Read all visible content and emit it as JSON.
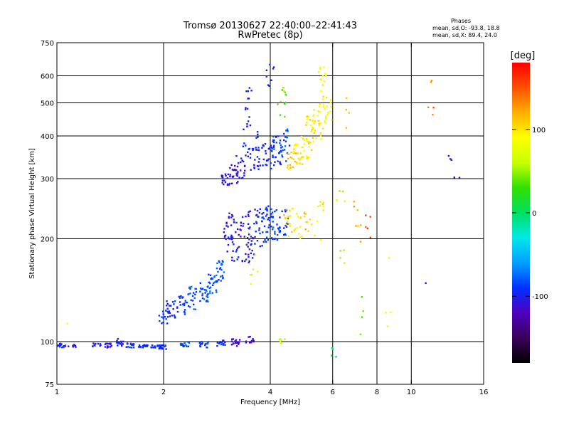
{
  "chart_data": {
    "type": "scatter",
    "title": "Tromsø 20130627 22:40:00–22:41:43",
    "subtitle": "RwPretec (8p)",
    "xlabel": "Frequency [MHz]",
    "ylabel": "Stationary phase Virtual Height [km]",
    "x_scale": "log",
    "y_scale": "log",
    "xlim": [
      1,
      16
    ],
    "ylim": [
      75,
      750
    ],
    "x_ticks": [
      1,
      2,
      4,
      6,
      8,
      10,
      16
    ],
    "x_tick_labels": [
      "1",
      "2",
      "4",
      "6",
      "8",
      "10",
      "16"
    ],
    "y_ticks": [
      75,
      100,
      200,
      300,
      400,
      500,
      600,
      750
    ],
    "y_tick_labels": [
      "75",
      "100",
      "200",
      "300",
      "400",
      "500",
      "600",
      "750"
    ],
    "grid_x": [
      2,
      4,
      6,
      8,
      10
    ],
    "grid_y": [
      100,
      200,
      300,
      400,
      500,
      600
    ],
    "grid": true,
    "stats_title": "Phases",
    "stats": [
      "mean, sd,O: -93.8, 18.8",
      "mean, sd,X:  89.4, 24.0"
    ],
    "colorbar": {
      "label": "[deg]",
      "min": -180,
      "max": 180,
      "ticks": [
        100,
        0,
        -100
      ],
      "tick_labels": [
        "100",
        "0",
        "-100"
      ],
      "stops": [
        "#000000",
        "#3a0058",
        "#5000c0",
        "#0030ff",
        "#00a0ff",
        "#00e8e8",
        "#00e060",
        "#30e000",
        "#c8ff00",
        "#ffff00",
        "#ffb000",
        "#ff5000",
        "#ff0000"
      ]
    },
    "series": [
      {
        "x": 1.0,
        "y0": 97,
        "y1": 99,
        "n": 18,
        "hue": -95
      },
      {
        "x": 1.05,
        "y0": 96,
        "y1": 98,
        "n": 8,
        "hue": -95
      },
      {
        "x": 1.1,
        "y0": 96,
        "y1": 98,
        "n": 6,
        "hue": -100
      },
      {
        "x": 1.3,
        "y0": 96,
        "y1": 99,
        "n": 10,
        "hue": -100
      },
      {
        "x": 1.4,
        "y0": 96,
        "y1": 100,
        "n": 14,
        "hue": -110
      },
      {
        "x": 1.5,
        "y0": 97,
        "y1": 102,
        "n": 16,
        "hue": -100
      },
      {
        "x": 1.6,
        "y0": 96,
        "y1": 99,
        "n": 14,
        "hue": -95
      },
      {
        "x": 1.75,
        "y0": 96,
        "y1": 98,
        "n": 16,
        "hue": -95
      },
      {
        "x": 1.9,
        "y0": 96,
        "y1": 98,
        "n": 16,
        "hue": -95
      },
      {
        "x": 2.0,
        "y0": 95,
        "y1": 98,
        "n": 14,
        "hue": -90
      },
      {
        "x": 2.0,
        "y0": 112,
        "y1": 125,
        "n": 14,
        "hue": -95
      },
      {
        "x": 2.1,
        "y0": 115,
        "y1": 132,
        "n": 18,
        "hue": -95
      },
      {
        "x": 2.25,
        "y0": 120,
        "y1": 138,
        "n": 20,
        "hue": -90
      },
      {
        "x": 2.4,
        "y0": 124,
        "y1": 145,
        "n": 22,
        "hue": -85
      },
      {
        "x": 2.6,
        "y0": 130,
        "y1": 150,
        "n": 22,
        "hue": -85
      },
      {
        "x": 2.75,
        "y0": 138,
        "y1": 160,
        "n": 22,
        "hue": -80
      },
      {
        "x": 2.9,
        "y0": 150,
        "y1": 175,
        "n": 22,
        "hue": -80
      },
      {
        "x": 2.3,
        "y0": 96,
        "y1": 100,
        "n": 16,
        "hue": -85
      },
      {
        "x": 2.6,
        "y0": 96,
        "y1": 100,
        "n": 16,
        "hue": -85
      },
      {
        "x": 2.9,
        "y0": 97,
        "y1": 101,
        "n": 16,
        "hue": -95
      },
      {
        "x": 3.2,
        "y0": 97,
        "y1": 102,
        "n": 18,
        "hue": -115
      },
      {
        "x": 3.5,
        "y0": 98,
        "y1": 104,
        "n": 12,
        "hue": -110
      },
      {
        "x": 3.05,
        "y0": 180,
        "y1": 240,
        "n": 24,
        "hue": -105
      },
      {
        "x": 3.2,
        "y0": 170,
        "y1": 230,
        "n": 22,
        "hue": -100
      },
      {
        "x": 3.4,
        "y0": 170,
        "y1": 240,
        "n": 26,
        "hue": -110
      },
      {
        "x": 3.55,
        "y0": 175,
        "y1": 245,
        "n": 24,
        "hue": -100
      },
      {
        "x": 3.75,
        "y0": 190,
        "y1": 245,
        "n": 22,
        "hue": -95
      },
      {
        "x": 3.95,
        "y0": 195,
        "y1": 250,
        "n": 26,
        "hue": -90
      },
      {
        "x": 4.15,
        "y0": 195,
        "y1": 245,
        "n": 22,
        "hue": -85
      },
      {
        "x": 4.35,
        "y0": 205,
        "y1": 245,
        "n": 18,
        "hue": -90
      },
      {
        "x": 3.0,
        "y0": 285,
        "y1": 310,
        "n": 18,
        "hue": -105
      },
      {
        "x": 3.15,
        "y0": 290,
        "y1": 330,
        "n": 18,
        "hue": -110
      },
      {
        "x": 3.3,
        "y0": 300,
        "y1": 350,
        "n": 18,
        "hue": -105
      },
      {
        "x": 3.45,
        "y0": 315,
        "y1": 560,
        "n": 26,
        "hue": -100
      },
      {
        "x": 3.6,
        "y0": 320,
        "y1": 420,
        "n": 18,
        "hue": -95
      },
      {
        "x": 3.8,
        "y0": 315,
        "y1": 380,
        "n": 16,
        "hue": -100
      },
      {
        "x": 4.0,
        "y0": 320,
        "y1": 400,
        "n": 22,
        "hue": -95
      },
      {
        "x": 4.2,
        "y0": 330,
        "y1": 400,
        "n": 22,
        "hue": -90
      },
      {
        "x": 4.4,
        "y0": 330,
        "y1": 420,
        "n": 20,
        "hue": -85
      },
      {
        "x": 4.6,
        "y0": 320,
        "y1": 360,
        "n": 18,
        "hue": 110
      },
      {
        "x": 4.8,
        "y0": 330,
        "y1": 380,
        "n": 18,
        "hue": 100
      },
      {
        "x": 5.0,
        "y0": 340,
        "y1": 400,
        "n": 18,
        "hue": 95
      },
      {
        "x": 5.2,
        "y0": 360,
        "y1": 460,
        "n": 20,
        "hue": 100
      },
      {
        "x": 5.4,
        "y0": 380,
        "y1": 500,
        "n": 22,
        "hue": 95
      },
      {
        "x": 5.6,
        "y0": 420,
        "y1": 640,
        "n": 22,
        "hue": 90
      },
      {
        "x": 5.8,
        "y0": 430,
        "y1": 520,
        "n": 14,
        "hue": 85
      },
      {
        "x": 4.0,
        "y0": 520,
        "y1": 650,
        "n": 8,
        "hue": -95
      },
      {
        "x": 4.3,
        "y0": 440,
        "y1": 560,
        "n": 12,
        "hue": 40
      },
      {
        "x": 4.5,
        "y0": 200,
        "y1": 250,
        "n": 14,
        "hue": 105
      },
      {
        "x": 4.8,
        "y0": 200,
        "y1": 240,
        "n": 12,
        "hue": 90
      },
      {
        "x": 5.1,
        "y0": 210,
        "y1": 240,
        "n": 10,
        "hue": 110
      },
      {
        "x": 5.5,
        "y0": 190,
        "y1": 260,
        "n": 10,
        "hue": 95
      },
      {
        "x": 6.3,
        "y0": 160,
        "y1": 280,
        "n": 8,
        "hue": 60
      },
      {
        "x": 7.0,
        "y0": 180,
        "y1": 260,
        "n": 7,
        "hue": 120
      },
      {
        "x": 7.6,
        "y0": 200,
        "y1": 240,
        "n": 5,
        "hue": 150
      },
      {
        "x": 6.5,
        "y0": 400,
        "y1": 520,
        "n": 5,
        "hue": 110
      },
      {
        "x": 7.3,
        "y0": 100,
        "y1": 140,
        "n": 4,
        "hue": 40
      },
      {
        "x": 8.5,
        "y0": 110,
        "y1": 200,
        "n": 4,
        "hue": 90
      },
      {
        "x": 11.5,
        "y0": 420,
        "y1": 590,
        "n": 5,
        "hue": 140
      },
      {
        "x": 12.8,
        "y0": 340,
        "y1": 380,
        "n": 3,
        "hue": -100
      },
      {
        "x": 13.5,
        "y0": 300,
        "y1": 305,
        "n": 2,
        "hue": -110
      },
      {
        "x": 11.0,
        "y0": 148,
        "y1": 152,
        "n": 1,
        "hue": -110
      },
      {
        "x": 1.1,
        "y0": 110,
        "y1": 114,
        "n": 1,
        "hue": 95
      },
      {
        "x": 6.0,
        "y0": 90,
        "y1": 100,
        "n": 4,
        "hue": 0
      },
      {
        "x": 3.6,
        "y0": 130,
        "y1": 180,
        "n": 6,
        "hue": 90
      },
      {
        "x": 4.3,
        "y0": 98,
        "y1": 102,
        "n": 6,
        "hue": 60
      }
    ]
  }
}
